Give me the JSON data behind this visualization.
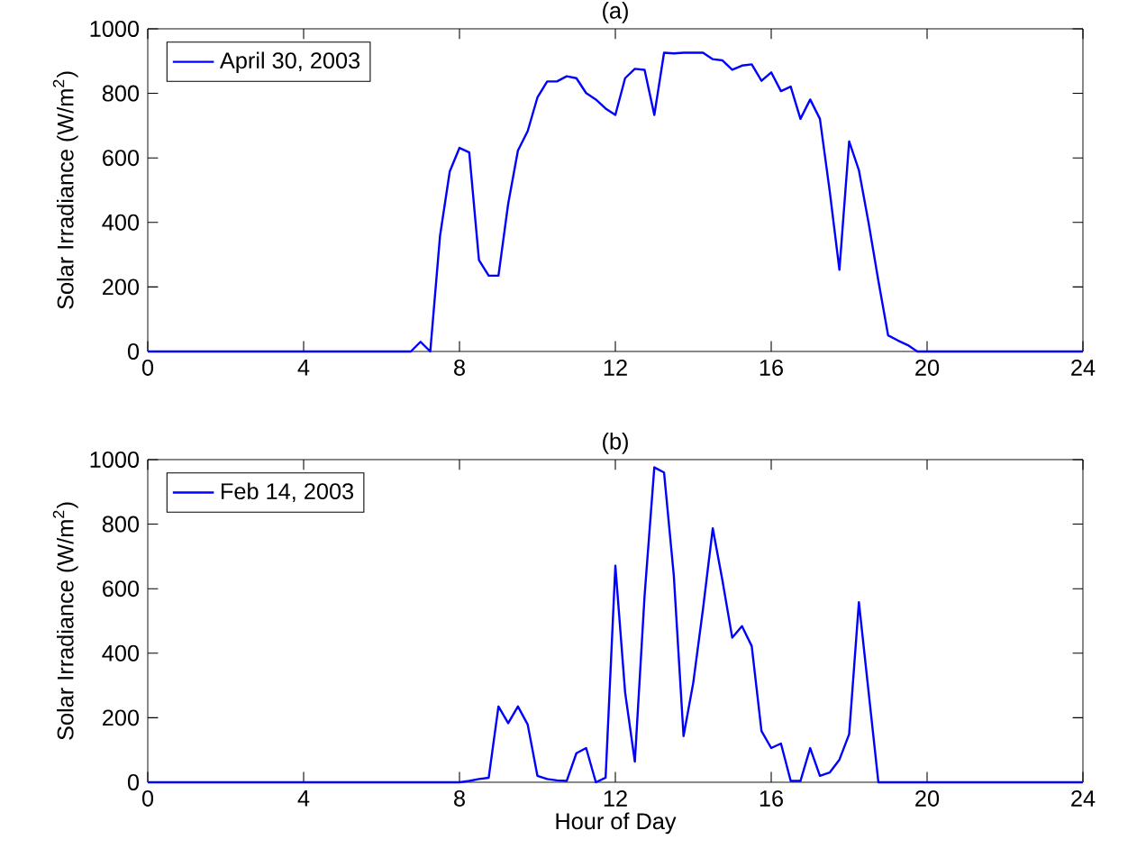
{
  "chart_data": [
    {
      "type": "line",
      "title": "(a)",
      "ylabel": "Solar Irradiance (W/m$^{2}$)",
      "xlim": [
        0,
        24
      ],
      "ylim": [
        0,
        1000
      ],
      "xticks": [
        0,
        4,
        8,
        12,
        16,
        20,
        24
      ],
      "yticks": [
        0,
        200,
        400,
        600,
        800,
        1000
      ],
      "legend": "top left",
      "grid": false,
      "series": [
        {
          "name": "April 30, 2003",
          "color": "#0000ff",
          "x": [
            0,
            6.75,
            7.0,
            7.25,
            7.5,
            7.75,
            8.0,
            8.25,
            8.5,
            8.75,
            9.0,
            9.25,
            9.5,
            9.75,
            10.0,
            10.25,
            10.5,
            10.75,
            11.0,
            11.25,
            11.5,
            11.75,
            12.0,
            12.25,
            12.5,
            12.75,
            13.0,
            13.25,
            13.5,
            13.75,
            14.0,
            14.25,
            14.5,
            14.75,
            15.0,
            15.25,
            15.5,
            15.75,
            16.0,
            16.25,
            16.5,
            16.75,
            17.0,
            17.25,
            17.5,
            17.75,
            18.0,
            18.25,
            18.5,
            18.75,
            19.0,
            19.25,
            19.5,
            19.75,
            24
          ],
          "values": [
            0,
            0,
            30,
            0,
            358,
            558,
            631,
            617,
            283,
            235,
            235,
            458,
            623,
            683,
            787,
            837,
            837,
            853,
            847,
            801,
            781,
            753,
            733,
            847,
            876,
            873,
            733,
            926,
            924,
            926,
            926,
            926,
            906,
            902,
            873,
            886,
            890,
            839,
            865,
            807,
            821,
            721,
            781,
            721,
            498,
            253,
            651,
            562,
            398,
            219,
            50,
            34,
            20,
            0,
            0
          ]
        }
      ]
    },
    {
      "type": "line",
      "title": "(b)",
      "xlabel": "Hour of Day",
      "ylabel": "Solar Irradiance (W/m$^{2}$)",
      "xlim": [
        0,
        24
      ],
      "ylim": [
        0,
        1000
      ],
      "xticks": [
        0,
        4,
        8,
        12,
        16,
        20,
        24
      ],
      "yticks": [
        0,
        200,
        400,
        600,
        800,
        1000
      ],
      "legend": "top left",
      "grid": false,
      "series": [
        {
          "name": "Feb 14, 2003",
          "color": "#0000ff",
          "x": [
            0,
            8.0,
            8.25,
            8.5,
            8.75,
            9.0,
            9.25,
            9.5,
            9.75,
            10.0,
            10.25,
            10.5,
            10.75,
            11.0,
            11.25,
            11.5,
            11.75,
            12.0,
            12.25,
            12.5,
            12.75,
            13.0,
            13.25,
            13.5,
            13.75,
            14.0,
            14.25,
            14.5,
            14.75,
            15.0,
            15.25,
            15.5,
            15.75,
            16.0,
            16.25,
            16.5,
            16.75,
            17.0,
            17.25,
            17.5,
            17.75,
            18.0,
            18.25,
            18.5,
            18.75,
            24
          ],
          "values": [
            0,
            0,
            4,
            10,
            14,
            235,
            183,
            235,
            179,
            20,
            10,
            6,
            4,
            90,
            106,
            0,
            14,
            671,
            279,
            64,
            578,
            976,
            960,
            641,
            143,
            309,
            538,
            787,
            624,
            448,
            484,
            422,
            159,
            106,
            120,
            4,
            4,
            106,
            20,
            30,
            70,
            149,
            558,
            279,
            0,
            0
          ]
        }
      ]
    }
  ]
}
